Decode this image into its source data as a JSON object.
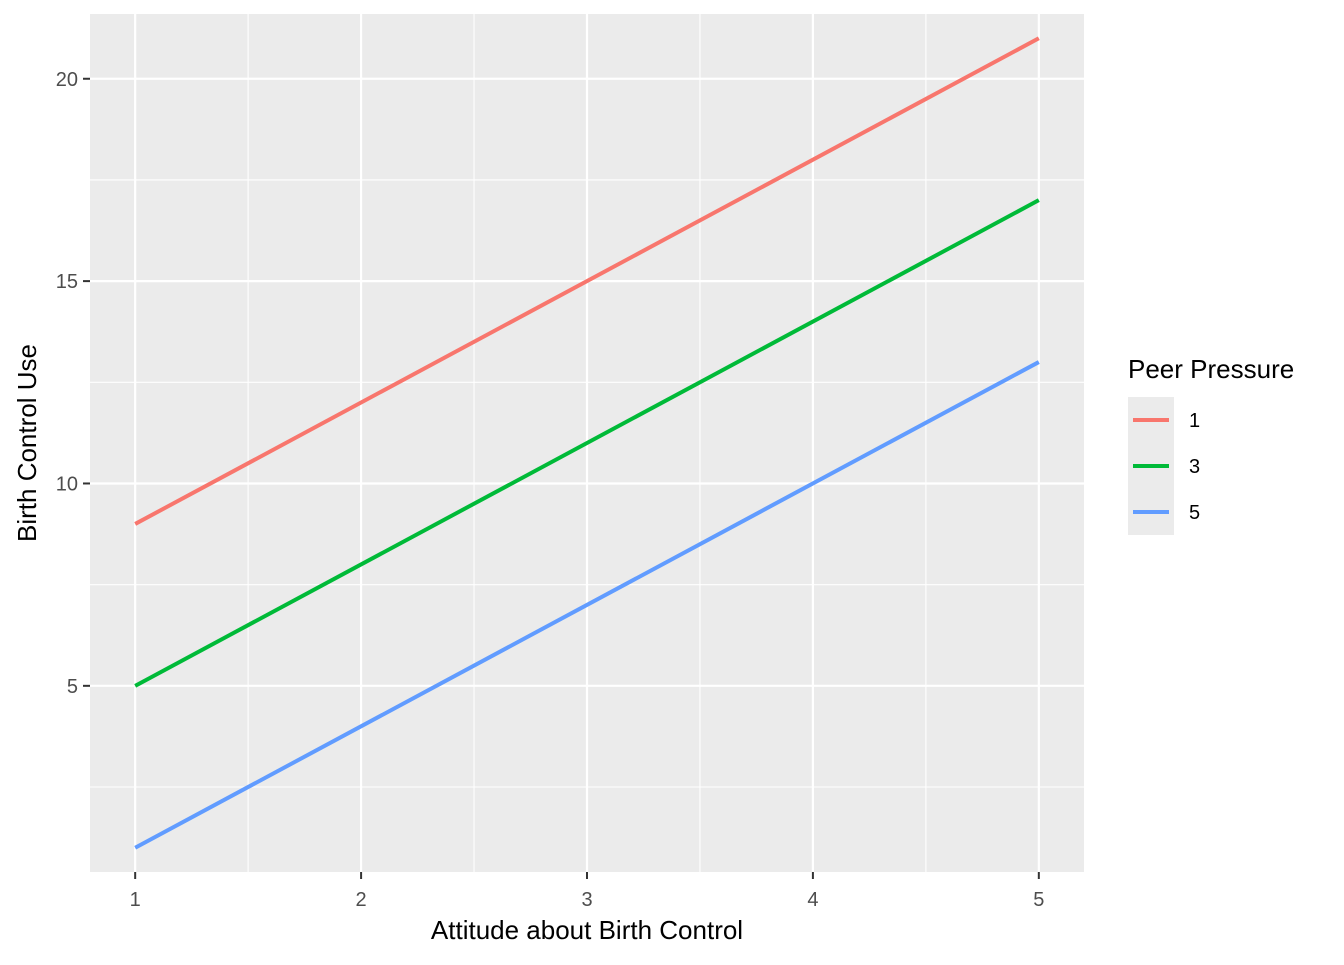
{
  "chart_data": {
    "type": "line",
    "xlabel": "Attitude about Birth Control",
    "ylabel": "Birth Control Use",
    "x_ticks": [
      1,
      2,
      3,
      4,
      5
    ],
    "y_ticks": [
      5,
      10,
      15,
      20
    ],
    "xlim": [
      0.8,
      5.2
    ],
    "ylim": [
      0.4,
      21.6
    ],
    "grid": true,
    "legend": {
      "title": "Peer Pressure",
      "placement": "right"
    },
    "series": [
      {
        "name": "1",
        "color": "#F8766D",
        "x": [
          1,
          5
        ],
        "y": [
          9,
          21
        ]
      },
      {
        "name": "3",
        "color": "#00BA38",
        "x": [
          1,
          5
        ],
        "y": [
          5,
          17
        ]
      },
      {
        "name": "5",
        "color": "#619CFF",
        "x": [
          1,
          5
        ],
        "y": [
          1,
          13
        ]
      }
    ]
  }
}
